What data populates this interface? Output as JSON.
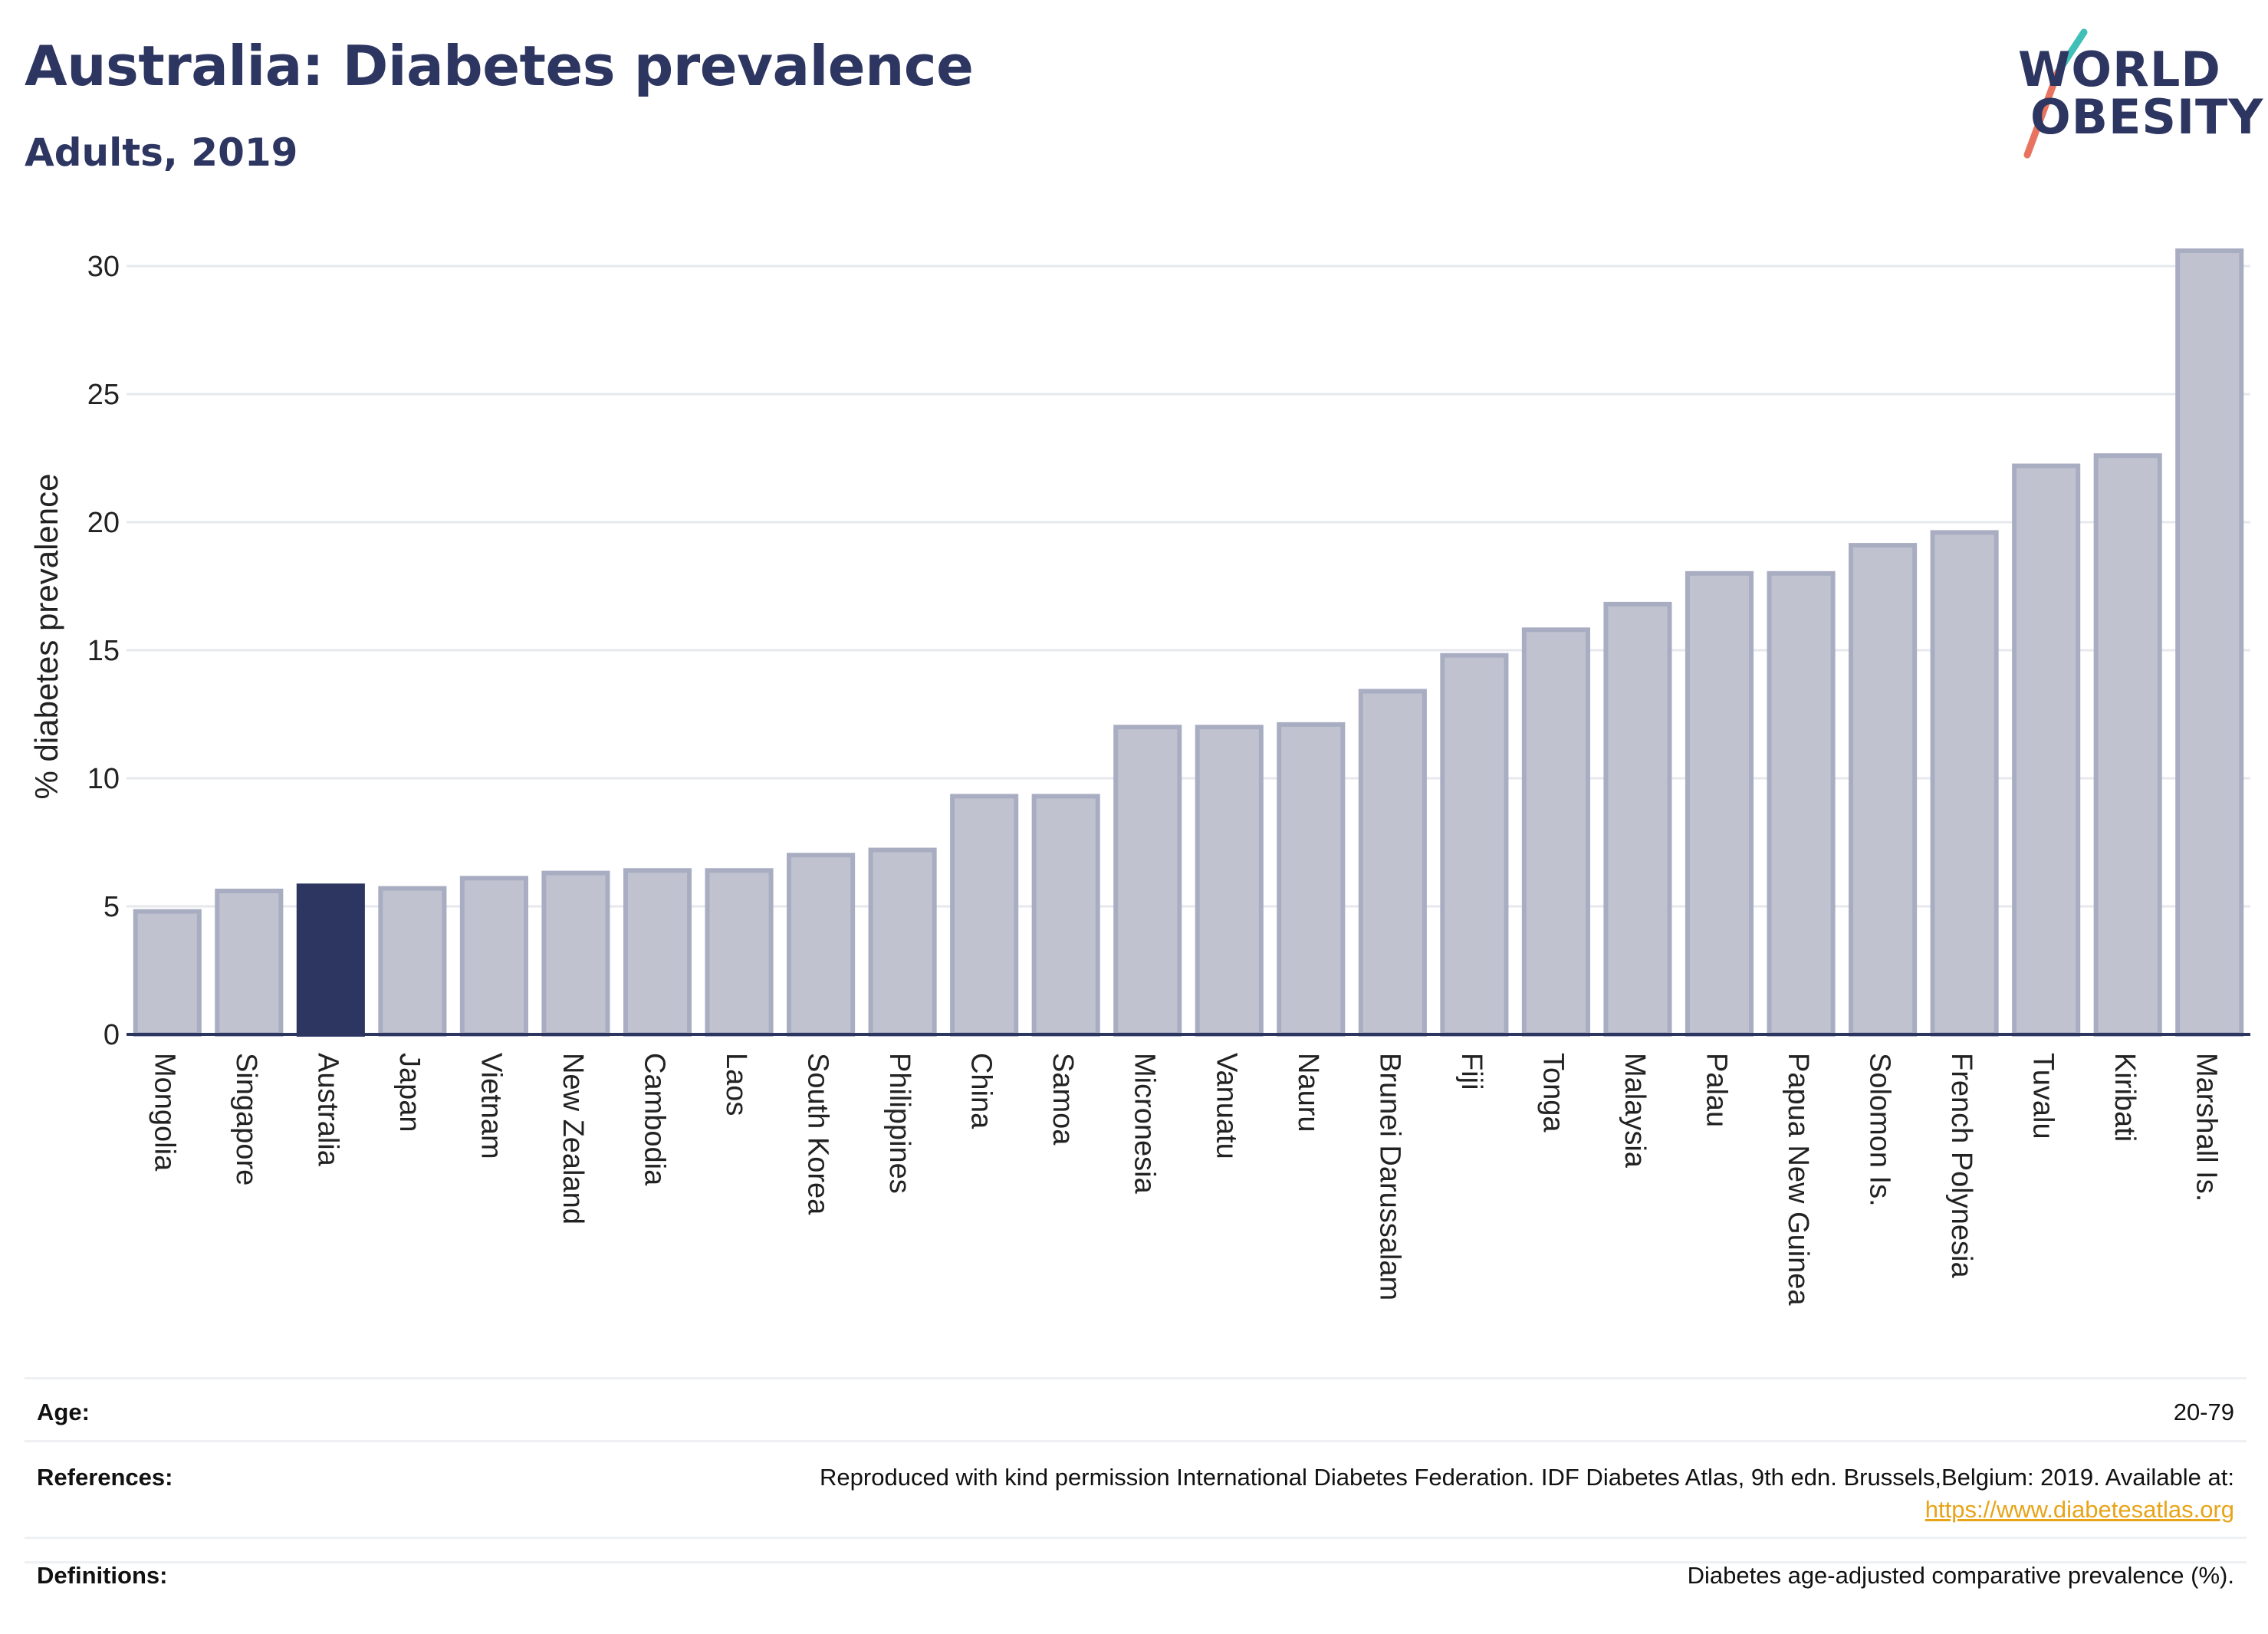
{
  "header": {
    "title": "Australia: Diabetes prevalence",
    "subtitle": "Adults, 2019"
  },
  "logo": {
    "line1": "WORLD",
    "line2": "OBESITY",
    "accent_teal": "#3fbfb8",
    "accent_coral": "#e8735f"
  },
  "chart_data": {
    "type": "bar",
    "ylabel": "% diabetes prevalence",
    "ylim": [
      0,
      30.6
    ],
    "yticks": [
      0,
      5,
      10,
      15,
      20,
      25,
      30
    ],
    "categories": [
      "Mongolia",
      "Singapore",
      "Australia",
      "Japan",
      "Vietnam",
      "New Zealand",
      "Cambodia",
      "Laos",
      "South Korea",
      "Philippines",
      "China",
      "Samoa",
      "Micronesia",
      "Vanuatu",
      "Nauru",
      "Brunei Darussalam",
      "Fiji",
      "Tonga",
      "Malaysia",
      "Palau",
      "Papua New Guinea",
      "Solomon Is.",
      "French Polynesia",
      "Tuvalu",
      "Kiribati",
      "Marshall Is."
    ],
    "values": [
      4.8,
      5.6,
      5.8,
      5.7,
      6.1,
      6.3,
      6.4,
      6.4,
      7.0,
      7.2,
      9.3,
      9.3,
      12.0,
      12.0,
      12.1,
      13.4,
      14.8,
      15.8,
      16.8,
      18.0,
      18.0,
      19.1,
      19.6,
      22.2,
      22.6,
      30.6
    ],
    "highlight": "Australia",
    "colors": {
      "bar": "#c0c3cf",
      "bar_border": "#a9adc2",
      "highlight": "#2d3561",
      "grid": "#e6e8ee",
      "axis": "#2d3561"
    },
    "grid": true,
    "legend": "none"
  },
  "meta": {
    "age_label": "Age:",
    "age_value": "20-79",
    "references_label": "References:",
    "references_text": "Reproduced with kind permission International Diabetes Federation. IDF Diabetes Atlas, 9th edn. Brussels,Belgium: 2019. Available at:",
    "references_link": "https://www.diabetesatlas.org",
    "definitions_label": "Definitions:",
    "definitions_text": "Diabetes age-adjusted comparative prevalence (%)."
  }
}
